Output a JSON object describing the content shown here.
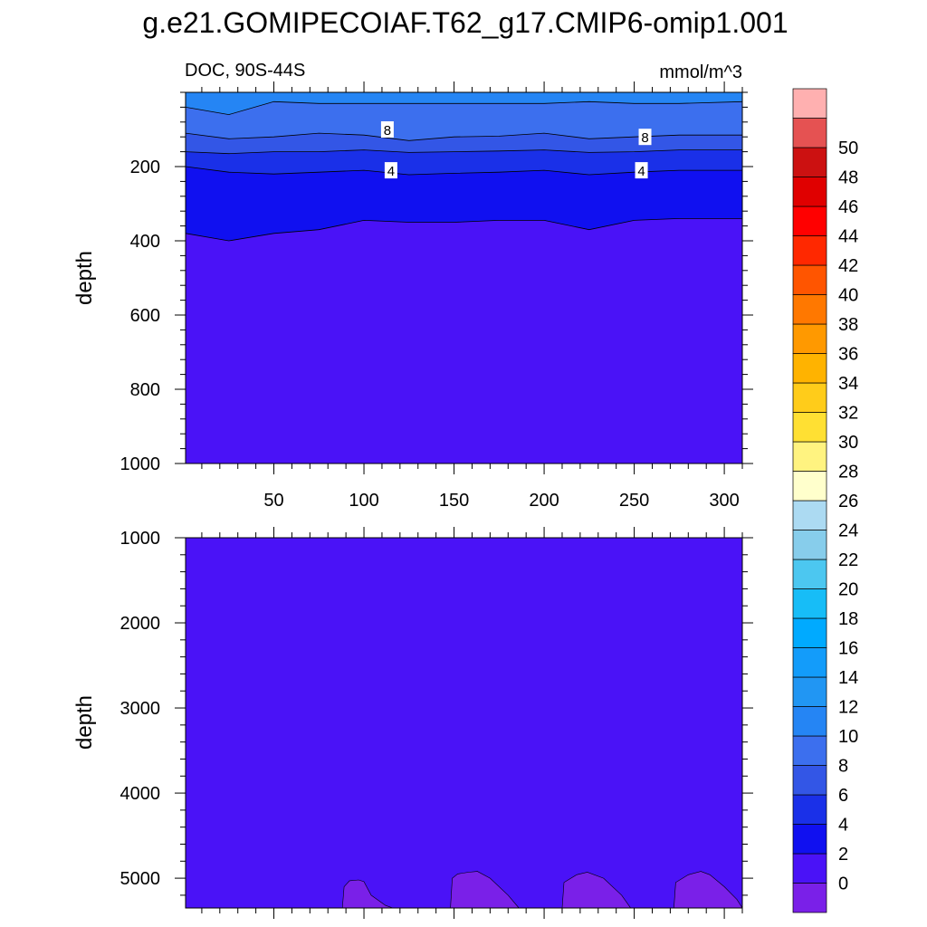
{
  "title": "g.e21.GOMIPECOIAF.T62_g17.CMIP6-omip1.001",
  "panel_left_label": "DOC, 90S-44S",
  "panel_right_label": "mmol/m^3",
  "colors": {
    "levels": [
      "#7a20e8",
      "#4a12f7",
      "#1010f0",
      "#1a30e8",
      "#3356e6",
      "#3c6fee",
      "#2585f4",
      "#2196f3",
      "#139cfa",
      "#00aaff",
      "#17bdf7",
      "#4cc7f0",
      "#87cdeb",
      "#acdaf2",
      "#ffffcc",
      "#fff380",
      "#ffe033",
      "#ffcc1a",
      "#ffb300",
      "#ff9900",
      "#ff7800",
      "#ff5500",
      "#ff2800",
      "#ff0000",
      "#e00000",
      "#cc1111",
      "#e55252",
      "#ffb0b0"
    ]
  },
  "chart_data": [
    {
      "type": "heatmap",
      "panel": "upper",
      "xlabel": "",
      "ylabel": "depth",
      "xlim": [
        1,
        310
      ],
      "ylim": [
        0,
        1000
      ],
      "y_inverted": true,
      "x_ticks": [
        50,
        100,
        150,
        200,
        250,
        300
      ],
      "y_ticks": [
        200,
        400,
        600,
        800,
        1000
      ],
      "contours": [
        {
          "level": 10,
          "depth": [
            40,
            60,
            25,
            30,
            30,
            30,
            30,
            30,
            30,
            25,
            30,
            30,
            25
          ]
        },
        {
          "level": 8,
          "depth": [
            110,
            125,
            120,
            110,
            115,
            130,
            120,
            118,
            110,
            125,
            120,
            115,
            115
          ]
        },
        {
          "level": 6,
          "depth": [
            160,
            165,
            160,
            160,
            155,
            162,
            160,
            158,
            155,
            162,
            160,
            155,
            155
          ]
        },
        {
          "level": 4,
          "depth": [
            200,
            215,
            220,
            215,
            210,
            222,
            218,
            215,
            210,
            222,
            215,
            210,
            210
          ]
        },
        {
          "level": 2,
          "depth": [
            380,
            400,
            380,
            370,
            345,
            350,
            350,
            345,
            345,
            370,
            345,
            340,
            340
          ]
        }
      ],
      "contour_x": [
        1,
        25,
        50,
        75,
        100,
        125,
        150,
        175,
        200,
        225,
        250,
        275,
        310
      ],
      "contour_labels": [
        {
          "text": "8",
          "x": 113,
          "depth": 100
        },
        {
          "text": "4",
          "x": 115,
          "depth": 210
        },
        {
          "text": "8",
          "x": 256,
          "depth": 120
        },
        {
          "text": "4",
          "x": 254,
          "depth": 210
        }
      ]
    },
    {
      "type": "heatmap",
      "panel": "lower",
      "xlabel": "",
      "ylabel": "depth",
      "xlim": [
        1,
        310
      ],
      "ylim": [
        1000,
        5350
      ],
      "y_inverted": true,
      "y_ticks": [
        1000,
        2000,
        3000,
        4000,
        5000
      ],
      "background_level": 2,
      "patches_level": 0,
      "patches": [
        [
          [
            88,
            5350
          ],
          [
            89,
            5100
          ],
          [
            92,
            5030
          ],
          [
            97,
            5020
          ],
          [
            100,
            5040
          ],
          [
            104,
            5200
          ],
          [
            112,
            5320
          ],
          [
            116,
            5350
          ]
        ],
        [
          [
            148,
            5350
          ],
          [
            149,
            5000
          ],
          [
            152,
            4950
          ],
          [
            158,
            4930
          ],
          [
            163,
            4920
          ],
          [
            170,
            5000
          ],
          [
            180,
            5200
          ],
          [
            186,
            5350
          ]
        ],
        [
          [
            210,
            5350
          ],
          [
            211,
            5050
          ],
          [
            218,
            4960
          ],
          [
            224,
            4930
          ],
          [
            233,
            5000
          ],
          [
            243,
            5200
          ],
          [
            248,
            5350
          ]
        ],
        [
          [
            272,
            5350
          ],
          [
            273,
            5050
          ],
          [
            280,
            4960
          ],
          [
            287,
            4920
          ],
          [
            292,
            4960
          ],
          [
            300,
            5100
          ],
          [
            307,
            5250
          ],
          [
            310,
            5350
          ]
        ]
      ]
    },
    {
      "type": "colorbar",
      "ticks": [
        0,
        2,
        4,
        6,
        8,
        10,
        12,
        14,
        16,
        18,
        20,
        22,
        24,
        26,
        28,
        30,
        32,
        34,
        36,
        38,
        40,
        42,
        44,
        46,
        48,
        50
      ]
    }
  ]
}
